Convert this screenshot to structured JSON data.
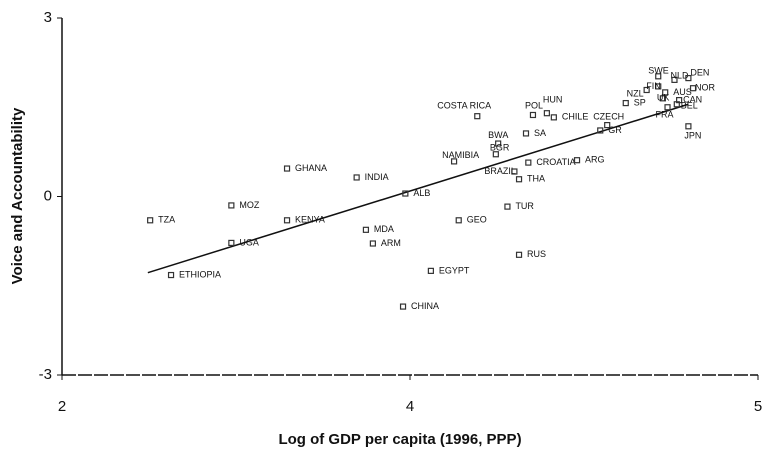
{
  "chart_data": {
    "type": "scatter",
    "x_label": "Log of GDP per capita (1996, PPP)",
    "y_label": "Voice and Accountability",
    "xlim": [
      2,
      5
    ],
    "ylim": [
      -3,
      3
    ],
    "xticks": [
      2,
      {
        "value": 3.5,
        "label": "4"
      },
      5
    ],
    "yticks": [
      3,
      0,
      -3
    ],
    "color": "#333333",
    "labels": [
      "TZA",
      "ETHIOPIA",
      "MOZ",
      "UGA",
      "GHANA",
      "KENYA",
      "INDIA",
      "ALB",
      "MDA",
      "ARM",
      "CHINA",
      "EGYPT",
      "GEO",
      "NAMIBIA",
      "COSTA RICA",
      "BWA",
      "BGR",
      "BRAZIL",
      "THA",
      "CROATIA",
      "TUR",
      "RUS",
      "POL",
      "HUN",
      "SA",
      "CHILE",
      "ARG",
      "CZECH",
      "GR",
      "SP",
      "NZL",
      "SWE",
      "FIN",
      "NLD",
      "DEN",
      "AUS",
      "NOR",
      "UK",
      "CAN",
      "FRA",
      "BEL",
      "JPN"
    ],
    "x": [
      2.38,
      2.47,
      2.73,
      2.73,
      2.97,
      2.97,
      3.27,
      3.48,
      3.31,
      3.34,
      3.47,
      3.59,
      3.71,
      3.69,
      3.79,
      3.88,
      3.87,
      3.95,
      3.97,
      4.01,
      3.92,
      3.97,
      4.03,
      4.09,
      4.0,
      4.12,
      4.22,
      4.35,
      4.32,
      4.43,
      4.52,
      4.57,
      4.57,
      4.64,
      4.7,
      4.6,
      4.72,
      4.59,
      4.66,
      4.61,
      4.65,
      4.7
    ],
    "y": [
      -0.4,
      -1.32,
      -0.15,
      -0.78,
      0.47,
      -0.4,
      0.32,
      0.05,
      -0.56,
      -0.79,
      -1.85,
      -1.25,
      -0.4,
      0.59,
      1.35,
      0.89,
      0.71,
      0.42,
      0.29,
      0.57,
      -0.17,
      -0.98,
      1.37,
      1.4,
      1.06,
      1.33,
      0.61,
      1.2,
      1.11,
      1.57,
      1.79,
      2.02,
      1.85,
      1.96,
      1.99,
      1.75,
      1.82,
      1.65,
      1.62,
      1.5,
      1.55,
      1.18
    ],
    "trend_line": {
      "x": [
        2.37,
        4.7
      ],
      "y": [
        -1.28,
        1.55
      ]
    }
  }
}
